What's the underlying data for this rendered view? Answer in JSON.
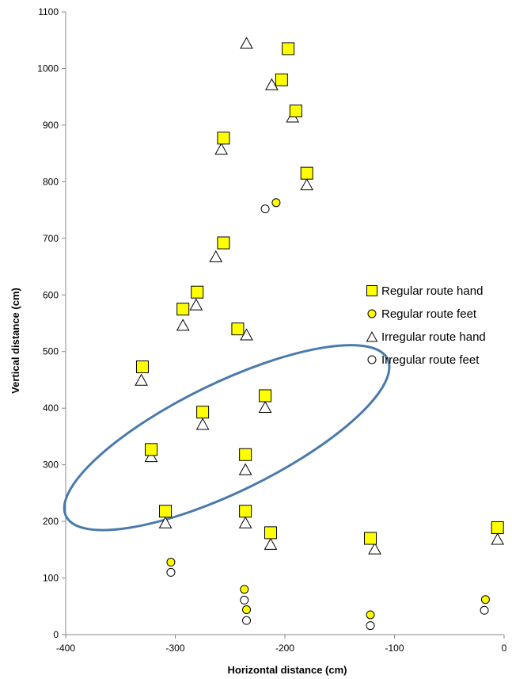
{
  "chart_data": {
    "type": "scatter",
    "title": "",
    "xlabel": "Horizontal distance (cm)",
    "ylabel": "Vertical distance (cm)",
    "xlim": [
      -400,
      0
    ],
    "ylim": [
      0,
      1100
    ],
    "x_ticks": [
      -400,
      -300,
      -200,
      -100,
      0
    ],
    "y_ticks": [
      0,
      100,
      200,
      300,
      400,
      500,
      600,
      700,
      800,
      900,
      1000,
      1100
    ],
    "grid": false,
    "legend_position": "right",
    "series": [
      {
        "name": "Regular route hand",
        "marker": "square",
        "color": "#ffff00",
        "stroke": "#000000",
        "points": [
          [
            -197,
            1035
          ],
          [
            -203,
            980
          ],
          [
            -190,
            925
          ],
          [
            -256,
            877
          ],
          [
            -180,
            815
          ],
          [
            -256,
            692
          ],
          [
            -280,
            605
          ],
          [
            -293,
            575
          ],
          [
            -243,
            540
          ],
          [
            -330,
            473
          ],
          [
            -218,
            422
          ],
          [
            -275,
            393
          ],
          [
            -322,
            327
          ],
          [
            -236,
            318
          ],
          [
            -309,
            218
          ],
          [
            -236,
            218
          ],
          [
            -213,
            180
          ],
          [
            -122,
            170
          ],
          [
            -6,
            189
          ]
        ]
      },
      {
        "name": "Regular route feet",
        "marker": "circle",
        "color": "#ffff00",
        "stroke": "#000000",
        "points": [
          [
            -208,
            763
          ],
          [
            -304,
            128
          ],
          [
            -237,
            80
          ],
          [
            -235,
            44
          ],
          [
            -122,
            35
          ],
          [
            -17,
            62
          ]
        ]
      },
      {
        "name": "Irregular route hand",
        "marker": "triangle",
        "color": "#ffffff",
        "stroke": "#000000",
        "points": [
          [
            -235,
            1045
          ],
          [
            -212,
            972
          ],
          [
            -193,
            915
          ],
          [
            -258,
            858
          ],
          [
            -180,
            795
          ],
          [
            -263,
            668
          ],
          [
            -281,
            583
          ],
          [
            -293,
            547
          ],
          [
            -235,
            530
          ],
          [
            -331,
            450
          ],
          [
            -218,
            402
          ],
          [
            -275,
            372
          ],
          [
            -322,
            315
          ],
          [
            -236,
            292
          ],
          [
            -309,
            198
          ],
          [
            -236,
            198
          ],
          [
            -213,
            160
          ],
          [
            -118,
            152
          ],
          [
            -6,
            169
          ]
        ]
      },
      {
        "name": "Irregular route feet",
        "marker": "circle",
        "color": "#ffffff",
        "stroke": "#000000",
        "points": [
          [
            -218,
            752
          ],
          [
            -304,
            110
          ],
          [
            -237,
            61
          ],
          [
            -235,
            25
          ],
          [
            -122,
            16
          ],
          [
            -18,
            43
          ]
        ]
      }
    ],
    "annotations": [
      {
        "type": "ellipse",
        "color": "#4a7aab",
        "center": [
          -253,
          348
        ],
        "rx_data": 102,
        "ry_data": 160,
        "rotation_deg": -26
      }
    ]
  }
}
